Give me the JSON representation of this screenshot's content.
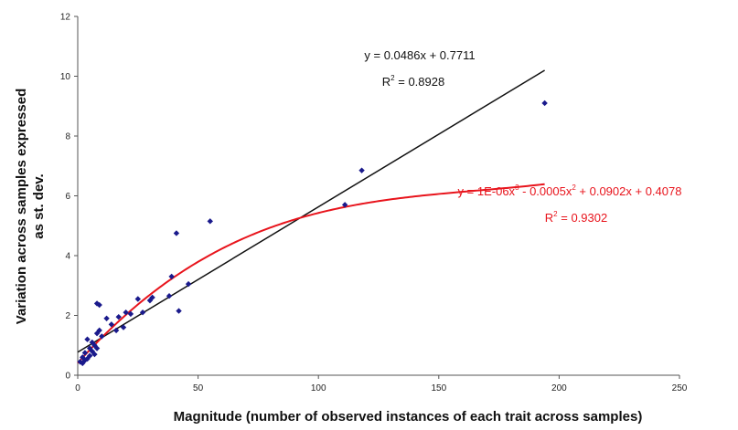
{
  "chart_data": {
    "type": "scatter",
    "title": "",
    "xlabel": "Magnitude (number of observed instances of each trait across samples)",
    "ylabel_line1": "Variation across samples expressed",
    "ylabel_line2": "as st. dev.",
    "xlim": [
      0,
      250
    ],
    "ylim": [
      0,
      12
    ],
    "xticks": [
      "0",
      "50",
      "100",
      "150",
      "200",
      "250"
    ],
    "yticks": [
      "0",
      "2",
      "4",
      "6",
      "8",
      "10",
      "12"
    ],
    "grid": false,
    "legend": "none",
    "marker_color": "#1a1a8c",
    "points": [
      {
        "x": 1,
        "y": 0.45
      },
      {
        "x": 2,
        "y": 0.4
      },
      {
        "x": 2,
        "y": 0.6
      },
      {
        "x": 3,
        "y": 0.5
      },
      {
        "x": 3,
        "y": 0.75
      },
      {
        "x": 4,
        "y": 0.55
      },
      {
        "x": 4,
        "y": 1.2
      },
      {
        "x": 5,
        "y": 0.65
      },
      {
        "x": 5,
        "y": 0.9
      },
      {
        "x": 6,
        "y": 0.8
      },
      {
        "x": 6,
        "y": 1.1
      },
      {
        "x": 7,
        "y": 0.7
      },
      {
        "x": 7,
        "y": 1.0
      },
      {
        "x": 8,
        "y": 1.4
      },
      {
        "x": 8,
        "y": 0.9
      },
      {
        "x": 8,
        "y": 2.4
      },
      {
        "x": 9,
        "y": 1.5
      },
      {
        "x": 9,
        "y": 2.35
      },
      {
        "x": 10,
        "y": 1.3
      },
      {
        "x": 12,
        "y": 1.9
      },
      {
        "x": 14,
        "y": 1.7
      },
      {
        "x": 16,
        "y": 1.5
      },
      {
        "x": 17,
        "y": 1.95
      },
      {
        "x": 19,
        "y": 1.6
      },
      {
        "x": 20,
        "y": 2.1
      },
      {
        "x": 22,
        "y": 2.05
      },
      {
        "x": 25,
        "y": 2.55
      },
      {
        "x": 27,
        "y": 2.1
      },
      {
        "x": 30,
        "y": 2.5
      },
      {
        "x": 31,
        "y": 2.6
      },
      {
        "x": 38,
        "y": 2.65
      },
      {
        "x": 39,
        "y": 3.3
      },
      {
        "x": 41,
        "y": 4.75
      },
      {
        "x": 42,
        "y": 2.15
      },
      {
        "x": 46,
        "y": 3.05
      },
      {
        "x": 55,
        "y": 5.15
      },
      {
        "x": 111,
        "y": 5.7
      },
      {
        "x": 118,
        "y": 6.85
      },
      {
        "x": 194,
        "y": 9.1
      }
    ],
    "series": [
      {
        "kind": "linear",
        "color": "#111111",
        "slope": 0.0486,
        "intercept": 0.7711,
        "x_range": [
          0,
          194
        ],
        "equation": "y = 0.0486x + 0.7711",
        "r2_prefix": "R",
        "r2_exp": "2",
        "r2_value": " = 0.8928"
      },
      {
        "kind": "cubic",
        "color": "#e8141c",
        "coef": [
          1e-06,
          -0.0005,
          0.0902,
          0.4078
        ],
        "x_range": [
          0,
          194
        ],
        "eq_part1": "y = 1E-06x",
        "eq_exp1": "3",
        "eq_part2": " - 0.0005x",
        "eq_exp2": "2",
        "eq_part3": " + 0.0902x + 0.4078",
        "r2_prefix": "R",
        "r2_exp": "2",
        "r2_value": " = 0.9302"
      }
    ]
  }
}
